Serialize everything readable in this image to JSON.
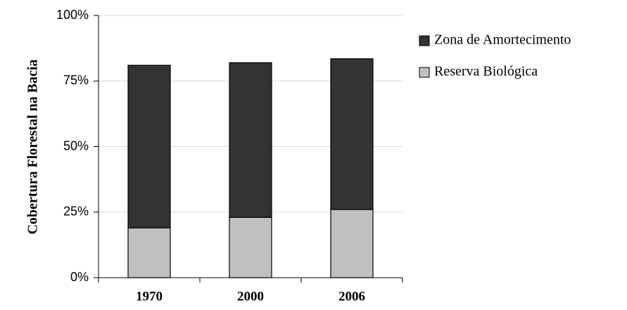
{
  "chart_data": {
    "type": "stacked_bar",
    "y_label": "Cobertura Florestal na Bacia",
    "categories": [
      "1970",
      "2000",
      "2006"
    ],
    "series": [
      {
        "name": "Reserva Biológica",
        "color": "#c0c0c0",
        "values": [
          19,
          23,
          26
        ]
      },
      {
        "name": "Zona de Amortecimento",
        "color": "#333333",
        "values": [
          62,
          59,
          57.5
        ]
      }
    ],
    "ylim": [
      0,
      100
    ],
    "yticks": [
      {
        "value": 0,
        "label": "0%"
      },
      {
        "value": 25,
        "label": "25%"
      },
      {
        "value": 50,
        "label": "50%"
      },
      {
        "value": 75,
        "label": "75%"
      },
      {
        "value": 100,
        "label": "100%"
      }
    ],
    "grid": true,
    "legend": "right"
  }
}
